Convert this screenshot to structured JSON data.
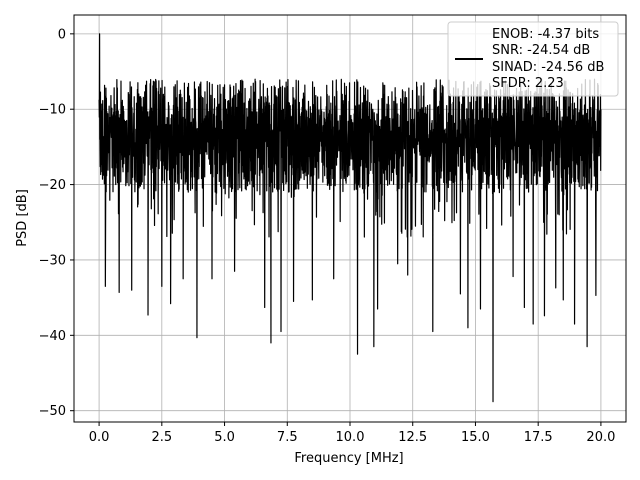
{
  "chart_data": {
    "type": "line",
    "xlabel": "Frequency [MHz]",
    "ylabel": "PSD [dB]",
    "xlim": [
      -1,
      21
    ],
    "ylim": [
      -51.5,
      2.5
    ],
    "x_ticks": [
      0.0,
      2.5,
      5.0,
      7.5,
      10.0,
      12.5,
      15.0,
      17.5,
      20.0
    ],
    "x_tick_labels": [
      "0.0",
      "2.5",
      "5.0",
      "7.5",
      "10.0",
      "12.5",
      "15.0",
      "17.5",
      "20.0"
    ],
    "y_ticks": [
      0,
      -10,
      -20,
      -30,
      -40,
      -50
    ],
    "y_tick_labels": [
      "0",
      "−10",
      "−20",
      "−30",
      "−40",
      "−50"
    ],
    "grid": true,
    "legend_position": "top-right",
    "colors": {
      "line": "#000000",
      "grid": "#b0b0b0"
    },
    "series": [
      {
        "name": "ENOB: -4.37 bits\nSNR: -24.54 dB\nSINAD: -24.56 dB\nSFDR: 2.23",
        "x_range": [
          0,
          20
        ],
        "peak": {
          "x": 0.02,
          "y": 0
        },
        "envelope_top": -6,
        "envelope_bottom": -25,
        "deep_dips": [
          {
            "x": 0.25,
            "y": -33.5
          },
          {
            "x": 0.8,
            "y": -34.3
          },
          {
            "x": 1.3,
            "y": -34
          },
          {
            "x": 1.95,
            "y": -37.3
          },
          {
            "x": 2.5,
            "y": -33.5
          },
          {
            "x": 2.85,
            "y": -35.8
          },
          {
            "x": 3.35,
            "y": -32.5
          },
          {
            "x": 3.9,
            "y": -40.3
          },
          {
            "x": 4.5,
            "y": -32.5
          },
          {
            "x": 5.4,
            "y": -31.5
          },
          {
            "x": 6.6,
            "y": -36.3
          },
          {
            "x": 6.85,
            "y": -41
          },
          {
            "x": 7.25,
            "y": -39.5
          },
          {
            "x": 7.75,
            "y": -35.5
          },
          {
            "x": 8.5,
            "y": -35.3
          },
          {
            "x": 9.35,
            "y": -32.5
          },
          {
            "x": 10.3,
            "y": -42.5
          },
          {
            "x": 10.95,
            "y": -41.5
          },
          {
            "x": 11.1,
            "y": -36.5
          },
          {
            "x": 11.9,
            "y": -30.5
          },
          {
            "x": 12.3,
            "y": -32
          },
          {
            "x": 13.3,
            "y": -39.5
          },
          {
            "x": 14.4,
            "y": -34.5
          },
          {
            "x": 14.7,
            "y": -39
          },
          {
            "x": 15.2,
            "y": -36.5
          },
          {
            "x": 15.7,
            "y": -48.8
          },
          {
            "x": 16.5,
            "y": -32.2
          },
          {
            "x": 16.95,
            "y": -36.3
          },
          {
            "x": 17.3,
            "y": -38.5
          },
          {
            "x": 17.75,
            "y": -37.4
          },
          {
            "x": 18.2,
            "y": -33.7
          },
          {
            "x": 18.5,
            "y": -35.3
          },
          {
            "x": 18.95,
            "y": -38.5
          },
          {
            "x": 19.45,
            "y": -41.5
          },
          {
            "x": 19.8,
            "y": -34.7
          }
        ]
      }
    ],
    "legend_lines": [
      "ENOB: -4.37 bits",
      "SNR: -24.54 dB",
      "SINAD: -24.56 dB",
      "SFDR: 2.23"
    ]
  }
}
